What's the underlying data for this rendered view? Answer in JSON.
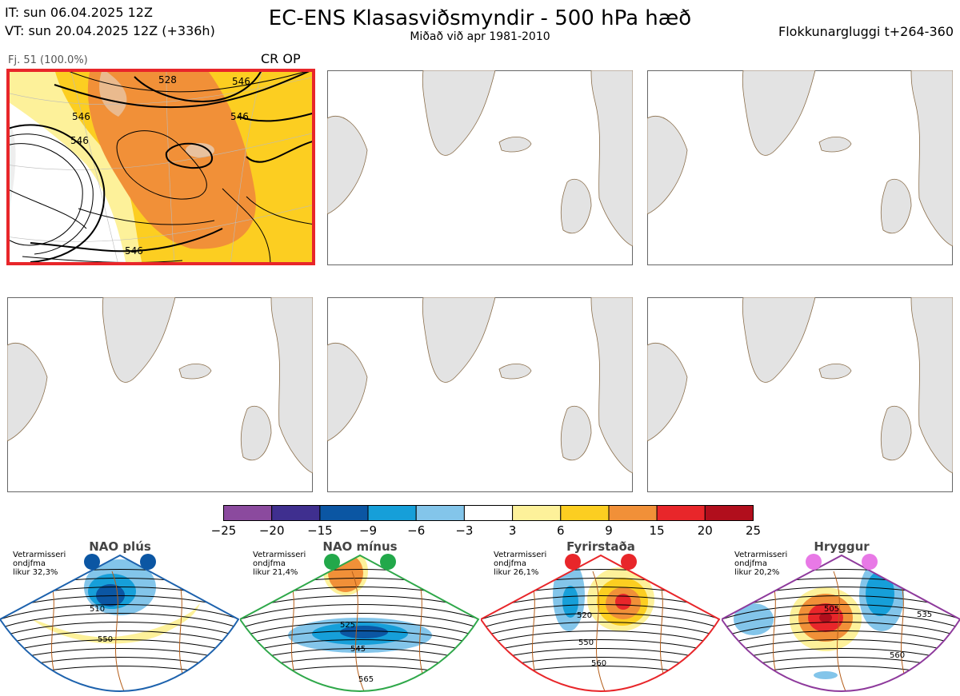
{
  "header": {
    "it_line": "IT: sun 06.04.2025 12Z",
    "vt_line": "VT: sun 20.04.2025 12Z  (+336h)",
    "title": "EC-ENS Klasasviðsmyndir - 500 hPa hæð",
    "subtitle": "Miðað við apr 1981-2010",
    "window": "Flokkunargluggi t+264-360"
  },
  "cluster": {
    "label": "Fj. 51 (100.0%)",
    "tag": "CR OP",
    "contour_labels": [
      "546",
      "528",
      "546",
      "546",
      "546",
      "546"
    ],
    "highlight_color": "#e8262a"
  },
  "colorbar": {
    "ticks": [
      "−25",
      "−20",
      "−15",
      "−9",
      "−6",
      "−3",
      "3",
      "6",
      "9",
      "15",
      "20",
      "25"
    ],
    "colors": [
      "#8b4a9e",
      "#3f2f8f",
      "#0b56a3",
      "#169fd9",
      "#83c5ea",
      "#ffffff",
      "#fdf19a",
      "#fcce21",
      "#f19038",
      "#e8262a",
      "#b10e1c"
    ]
  },
  "regimes": [
    {
      "title": "NAO plús",
      "info1": "Vetrarmisseri",
      "info2": "ondjfma",
      "info3": "likur 32,3%",
      "border": "#1d62ad",
      "dot": "#0b56a3",
      "labels": [
        "510",
        "550"
      ]
    },
    {
      "title": "NAO mínus",
      "info1": "Vetrarmisseri",
      "info2": "ondjfma",
      "info3": "likur 21,4%",
      "border": "#2fa84a",
      "dot": "#22a84a",
      "labels": [
        "525",
        "545",
        "565"
      ]
    },
    {
      "title": "Fyrirstaða",
      "info1": "Vetrarmisseri",
      "info2": "ondjfma",
      "info3": "likur 26,1%",
      "border": "#e8262a",
      "dot": "#e8262a",
      "labels": [
        "520",
        "550",
        "560"
      ]
    },
    {
      "title": "Hryggur",
      "info1": "Vetrarmisseri",
      "info2": "ondjfma",
      "info3": "likur 20,2%",
      "border": "#8e3a9c",
      "dot": "#e879e6",
      "labels": [
        "505",
        "535",
        "560"
      ]
    }
  ]
}
